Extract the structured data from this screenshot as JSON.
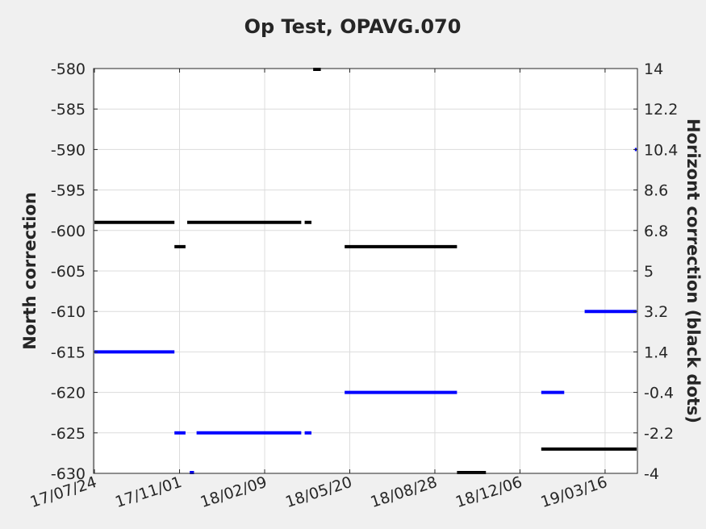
{
  "chart_data": {
    "type": "line",
    "title": "Op Test, OPAVG.070",
    "ylabel": "North correction",
    "y2label": "Horizont correction (black dots)",
    "ylim": [
      -630,
      -580
    ],
    "y2lim": [
      -4,
      14
    ],
    "yticks": [
      "-580",
      "-585",
      "-590",
      "-595",
      "-600",
      "-605",
      "-610",
      "-615",
      "-620",
      "-625",
      "-630"
    ],
    "y2ticks": [
      "14",
      "12.2",
      "10.4",
      "8.6",
      "6.8",
      "5",
      "3.2",
      "1.4",
      "-0.4",
      "-2.2",
      "-4"
    ],
    "xticks": [
      "17/07/24",
      "17/11/01",
      "18/02/09",
      "18/05/20",
      "18/08/28",
      "18/12/06",
      "19/03/16"
    ],
    "xlim": [
      "2017-07-23",
      "2019-04-23"
    ],
    "grid": true,
    "colors": {
      "north": "#0000ff",
      "horizont": "#000000"
    },
    "series": [
      {
        "name": "North correction",
        "axis": "left",
        "color": "#0000ff",
        "segments": [
          {
            "x0": "2017-07-23",
            "x1": "2017-10-26",
            "y": -615
          },
          {
            "x0": "2017-10-26",
            "x1": "2017-11-08",
            "y": -625
          },
          {
            "x0": "2017-11-13",
            "x1": "2017-11-18",
            "y": -630
          },
          {
            "x0": "2017-11-21",
            "x1": "2018-03-24",
            "y": -625
          },
          {
            "x0": "2018-03-28",
            "x1": "2018-04-05",
            "y": -625
          },
          {
            "x0": "2018-05-14",
            "x1": "2018-09-23",
            "y": -620
          },
          {
            "x0": "2018-12-31",
            "x1": "2019-01-27",
            "y": -620
          },
          {
            "x0": "2019-02-20",
            "x1": "2019-04-22",
            "y": -610
          },
          {
            "x0": "2019-04-20",
            "x1": "2019-04-23",
            "y": -590
          }
        ]
      },
      {
        "name": "Horizont correction",
        "axis": "right",
        "color": "#000000",
        "segments": [
          {
            "x0": "2017-07-23",
            "x1": "2017-10-26",
            "y": 7.16
          },
          {
            "x0": "2017-10-26",
            "x1": "2017-11-08",
            "y": 6.08
          },
          {
            "x0": "2017-11-10",
            "x1": "2018-03-24",
            "y": 7.16
          },
          {
            "x0": "2018-03-28",
            "x1": "2018-04-05",
            "y": 7.16
          },
          {
            "x0": "2018-04-07",
            "x1": "2018-04-16",
            "y": 14
          },
          {
            "x0": "2018-05-14",
            "x1": "2018-09-23",
            "y": 6.08
          },
          {
            "x0": "2018-09-23",
            "x1": "2018-10-27",
            "y": -4
          },
          {
            "x0": "2018-12-31",
            "x1": "2019-04-23",
            "y": -2.92
          }
        ]
      }
    ]
  }
}
